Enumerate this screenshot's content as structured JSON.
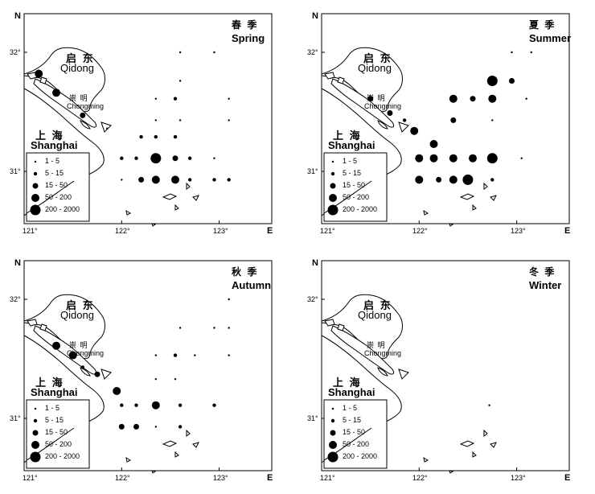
{
  "axis": {
    "north_label": "N",
    "east_label": "E",
    "lat_ticks": [
      "32°",
      "31°"
    ],
    "lon_ticks": [
      "121°",
      "122°",
      "123°"
    ]
  },
  "places": {
    "qidong_cn": "启 东",
    "qidong_en": "Qidong",
    "chongming_cn": "崇 明",
    "chongming_en": "Chongming",
    "shanghai_cn": "上 海",
    "shanghai_en": "Shanghai"
  },
  "legend": [
    {
      "label": "1 - 5",
      "size_class": 1
    },
    {
      "label": "5 - 15",
      "size_class": 2
    },
    {
      "label": "15 - 50",
      "size_class": 3
    },
    {
      "label": "50 - 200",
      "size_class": 4
    },
    {
      "label": "200 - 2000",
      "size_class": 5
    }
  ],
  "marker_color": "#000000",
  "panels": [
    {
      "id": "spring",
      "season_cn": "春 季",
      "season_en": "Spring",
      "stations": [
        {
          "lon": 121.15,
          "lat": 31.82,
          "class": 4
        },
        {
          "lon": 121.33,
          "lat": 31.66,
          "class": 4
        },
        {
          "lon": 121.6,
          "lat": 31.47,
          "class": 3
        },
        {
          "lon": 121.85,
          "lat": 31.36,
          "class": 1
        },
        {
          "lon": 122.6,
          "lat": 32.0,
          "class": 1
        },
        {
          "lon": 122.95,
          "lat": 32.0,
          "class": 1
        },
        {
          "lon": 122.6,
          "lat": 31.76,
          "class": 1
        },
        {
          "lon": 122.35,
          "lat": 31.61,
          "class": 1
        },
        {
          "lon": 122.55,
          "lat": 31.61,
          "class": 2
        },
        {
          "lon": 123.1,
          "lat": 31.61,
          "class": 1
        },
        {
          "lon": 122.35,
          "lat": 31.43,
          "class": 1
        },
        {
          "lon": 122.6,
          "lat": 31.43,
          "class": 1
        },
        {
          "lon": 123.1,
          "lat": 31.43,
          "class": 1
        },
        {
          "lon": 122.2,
          "lat": 31.29,
          "class": 2
        },
        {
          "lon": 122.35,
          "lat": 31.29,
          "class": 2
        },
        {
          "lon": 122.55,
          "lat": 31.29,
          "class": 2
        },
        {
          "lon": 122.0,
          "lat": 31.11,
          "class": 2
        },
        {
          "lon": 122.15,
          "lat": 31.11,
          "class": 2
        },
        {
          "lon": 122.35,
          "lat": 31.11,
          "class": 5
        },
        {
          "lon": 122.55,
          "lat": 31.11,
          "class": 3
        },
        {
          "lon": 122.7,
          "lat": 31.11,
          "class": 2
        },
        {
          "lon": 122.95,
          "lat": 31.11,
          "class": 1
        },
        {
          "lon": 122.0,
          "lat": 30.93,
          "class": 1
        },
        {
          "lon": 122.2,
          "lat": 30.93,
          "class": 3
        },
        {
          "lon": 122.35,
          "lat": 30.93,
          "class": 4
        },
        {
          "lon": 122.55,
          "lat": 30.93,
          "class": 4
        },
        {
          "lon": 122.7,
          "lat": 30.93,
          "class": 2
        },
        {
          "lon": 122.95,
          "lat": 30.93,
          "class": 2
        },
        {
          "lon": 123.1,
          "lat": 30.93,
          "class": 2
        }
      ]
    },
    {
      "id": "summer",
      "season_cn": "夏 季",
      "season_en": "Summer",
      "stations": [
        {
          "lon": 122.95,
          "lat": 32.0,
          "class": 1
        },
        {
          "lon": 123.15,
          "lat": 32.0,
          "class": 1
        },
        {
          "lon": 122.75,
          "lat": 31.76,
          "class": 5
        },
        {
          "lon": 122.95,
          "lat": 31.76,
          "class": 3
        },
        {
          "lon": 121.5,
          "lat": 31.61,
          "class": 3
        },
        {
          "lon": 122.35,
          "lat": 31.61,
          "class": 4
        },
        {
          "lon": 122.55,
          "lat": 31.61,
          "class": 3
        },
        {
          "lon": 122.75,
          "lat": 31.61,
          "class": 4
        },
        {
          "lon": 123.1,
          "lat": 31.61,
          "class": 1
        },
        {
          "lon": 121.7,
          "lat": 31.49,
          "class": 3
        },
        {
          "lon": 121.85,
          "lat": 31.43,
          "class": 2
        },
        {
          "lon": 122.35,
          "lat": 31.43,
          "class": 3
        },
        {
          "lon": 122.75,
          "lat": 31.43,
          "class": 1
        },
        {
          "lon": 121.95,
          "lat": 31.34,
          "class": 4
        },
        {
          "lon": 122.15,
          "lat": 31.23,
          "class": 4
        },
        {
          "lon": 122.0,
          "lat": 31.11,
          "class": 4
        },
        {
          "lon": 122.15,
          "lat": 31.11,
          "class": 4
        },
        {
          "lon": 122.35,
          "lat": 31.11,
          "class": 4
        },
        {
          "lon": 122.55,
          "lat": 31.11,
          "class": 4
        },
        {
          "lon": 122.75,
          "lat": 31.11,
          "class": 5
        },
        {
          "lon": 123.05,
          "lat": 31.11,
          "class": 1
        },
        {
          "lon": 122.0,
          "lat": 30.93,
          "class": 4
        },
        {
          "lon": 122.2,
          "lat": 30.93,
          "class": 3
        },
        {
          "lon": 122.35,
          "lat": 30.93,
          "class": 4
        },
        {
          "lon": 122.5,
          "lat": 30.93,
          "class": 5
        },
        {
          "lon": 122.75,
          "lat": 30.93,
          "class": 2
        }
      ]
    },
    {
      "id": "autumn",
      "season_cn": "秋 季",
      "season_en": "Autumn",
      "stations": [
        {
          "lon": 123.1,
          "lat": 32.0,
          "class": 1
        },
        {
          "lon": 122.6,
          "lat": 31.76,
          "class": 1
        },
        {
          "lon": 122.95,
          "lat": 31.76,
          "class": 1
        },
        {
          "lon": 123.1,
          "lat": 31.76,
          "class": 1
        },
        {
          "lon": 121.33,
          "lat": 31.61,
          "class": 4
        },
        {
          "lon": 121.5,
          "lat": 31.53,
          "class": 4
        },
        {
          "lon": 122.35,
          "lat": 31.53,
          "class": 1
        },
        {
          "lon": 122.55,
          "lat": 31.53,
          "class": 2
        },
        {
          "lon": 122.75,
          "lat": 31.53,
          "class": 1
        },
        {
          "lon": 123.1,
          "lat": 31.53,
          "class": 1
        },
        {
          "lon": 121.6,
          "lat": 31.43,
          "class": 2
        },
        {
          "lon": 121.75,
          "lat": 31.37,
          "class": 3
        },
        {
          "lon": 122.35,
          "lat": 31.33,
          "class": 1
        },
        {
          "lon": 122.55,
          "lat": 31.33,
          "class": 1
        },
        {
          "lon": 121.95,
          "lat": 31.23,
          "class": 4
        },
        {
          "lon": 122.0,
          "lat": 31.11,
          "class": 2
        },
        {
          "lon": 122.15,
          "lat": 31.11,
          "class": 2
        },
        {
          "lon": 122.35,
          "lat": 31.11,
          "class": 4
        },
        {
          "lon": 122.6,
          "lat": 31.11,
          "class": 2
        },
        {
          "lon": 122.95,
          "lat": 31.11,
          "class": 2
        },
        {
          "lon": 122.0,
          "lat": 30.93,
          "class": 3
        },
        {
          "lon": 122.15,
          "lat": 30.93,
          "class": 3
        },
        {
          "lon": 122.35,
          "lat": 30.93,
          "class": 1
        },
        {
          "lon": 122.6,
          "lat": 30.93,
          "class": 2
        }
      ]
    },
    {
      "id": "winter",
      "season_cn": "冬 季",
      "season_en": "Winter",
      "stations": [
        {
          "lon": 122.72,
          "lat": 31.11,
          "class": 1
        }
      ]
    }
  ]
}
